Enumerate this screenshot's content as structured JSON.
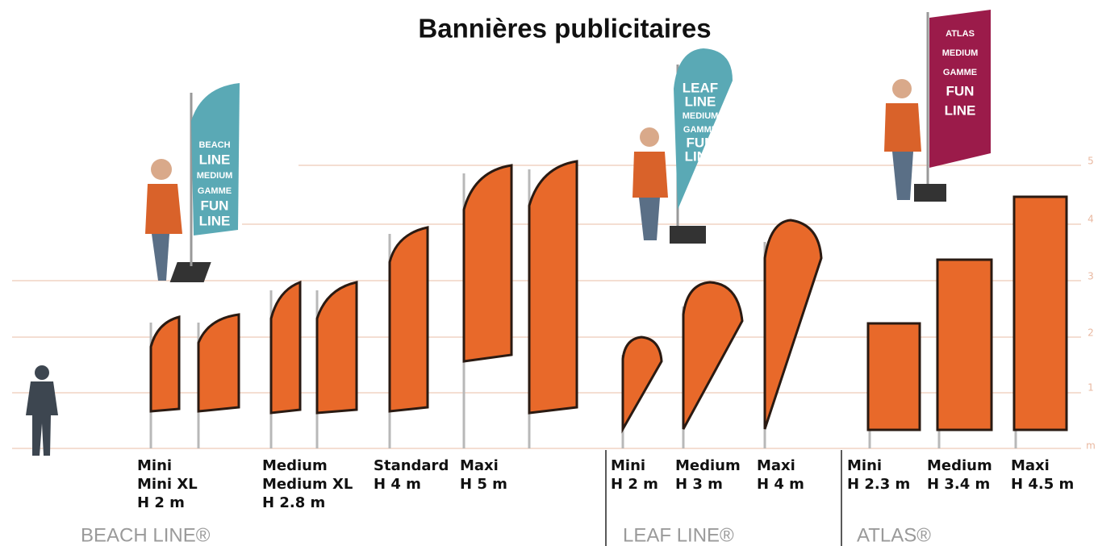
{
  "header": {
    "title": "Bannières publicitaires"
  },
  "scale": {
    "labels": [
      "5",
      "4",
      "3",
      "2",
      "1",
      "m"
    ]
  },
  "groups": [
    {
      "name": "BEACH LINE®",
      "models": [
        {
          "lines": [
            "Mini",
            "Mini XL",
            "H 2 m"
          ]
        },
        {
          "lines": [
            "Medium",
            "Medium XL",
            "H 2.8 m"
          ]
        },
        {
          "lines": [
            "Standard",
            "H 4 m"
          ]
        },
        {
          "lines": [
            "Maxi",
            "H 5 m"
          ]
        }
      ]
    },
    {
      "name": "LEAF LINE®",
      "models": [
        {
          "lines": [
            "Mini",
            "H 2 m"
          ]
        },
        {
          "lines": [
            "Medium",
            "H 3 m"
          ]
        },
        {
          "lines": [
            "Maxi",
            "H 4 m"
          ]
        }
      ]
    },
    {
      "name": "ATLAS®",
      "models": [
        {
          "lines": [
            "Mini",
            "H 2.3 m"
          ]
        },
        {
          "lines": [
            "Medium",
            "H 3.4 m"
          ]
        },
        {
          "lines": [
            "Maxi",
            "H 4.5 m"
          ]
        }
      ]
    }
  ],
  "promo_flags": [
    {
      "lines": [
        "BEACH",
        "LINE",
        "MEDIUM",
        "GAMME",
        "FUN",
        "LINE"
      ]
    },
    {
      "lines": [
        "LEAF",
        "LINE",
        "MEDIUM",
        "GAMME",
        "FUN",
        "LINE"
      ]
    },
    {
      "lines": [
        "ATLAS",
        "MEDIUM",
        "GAMME",
        "FUN",
        "LINE"
      ]
    }
  ]
}
